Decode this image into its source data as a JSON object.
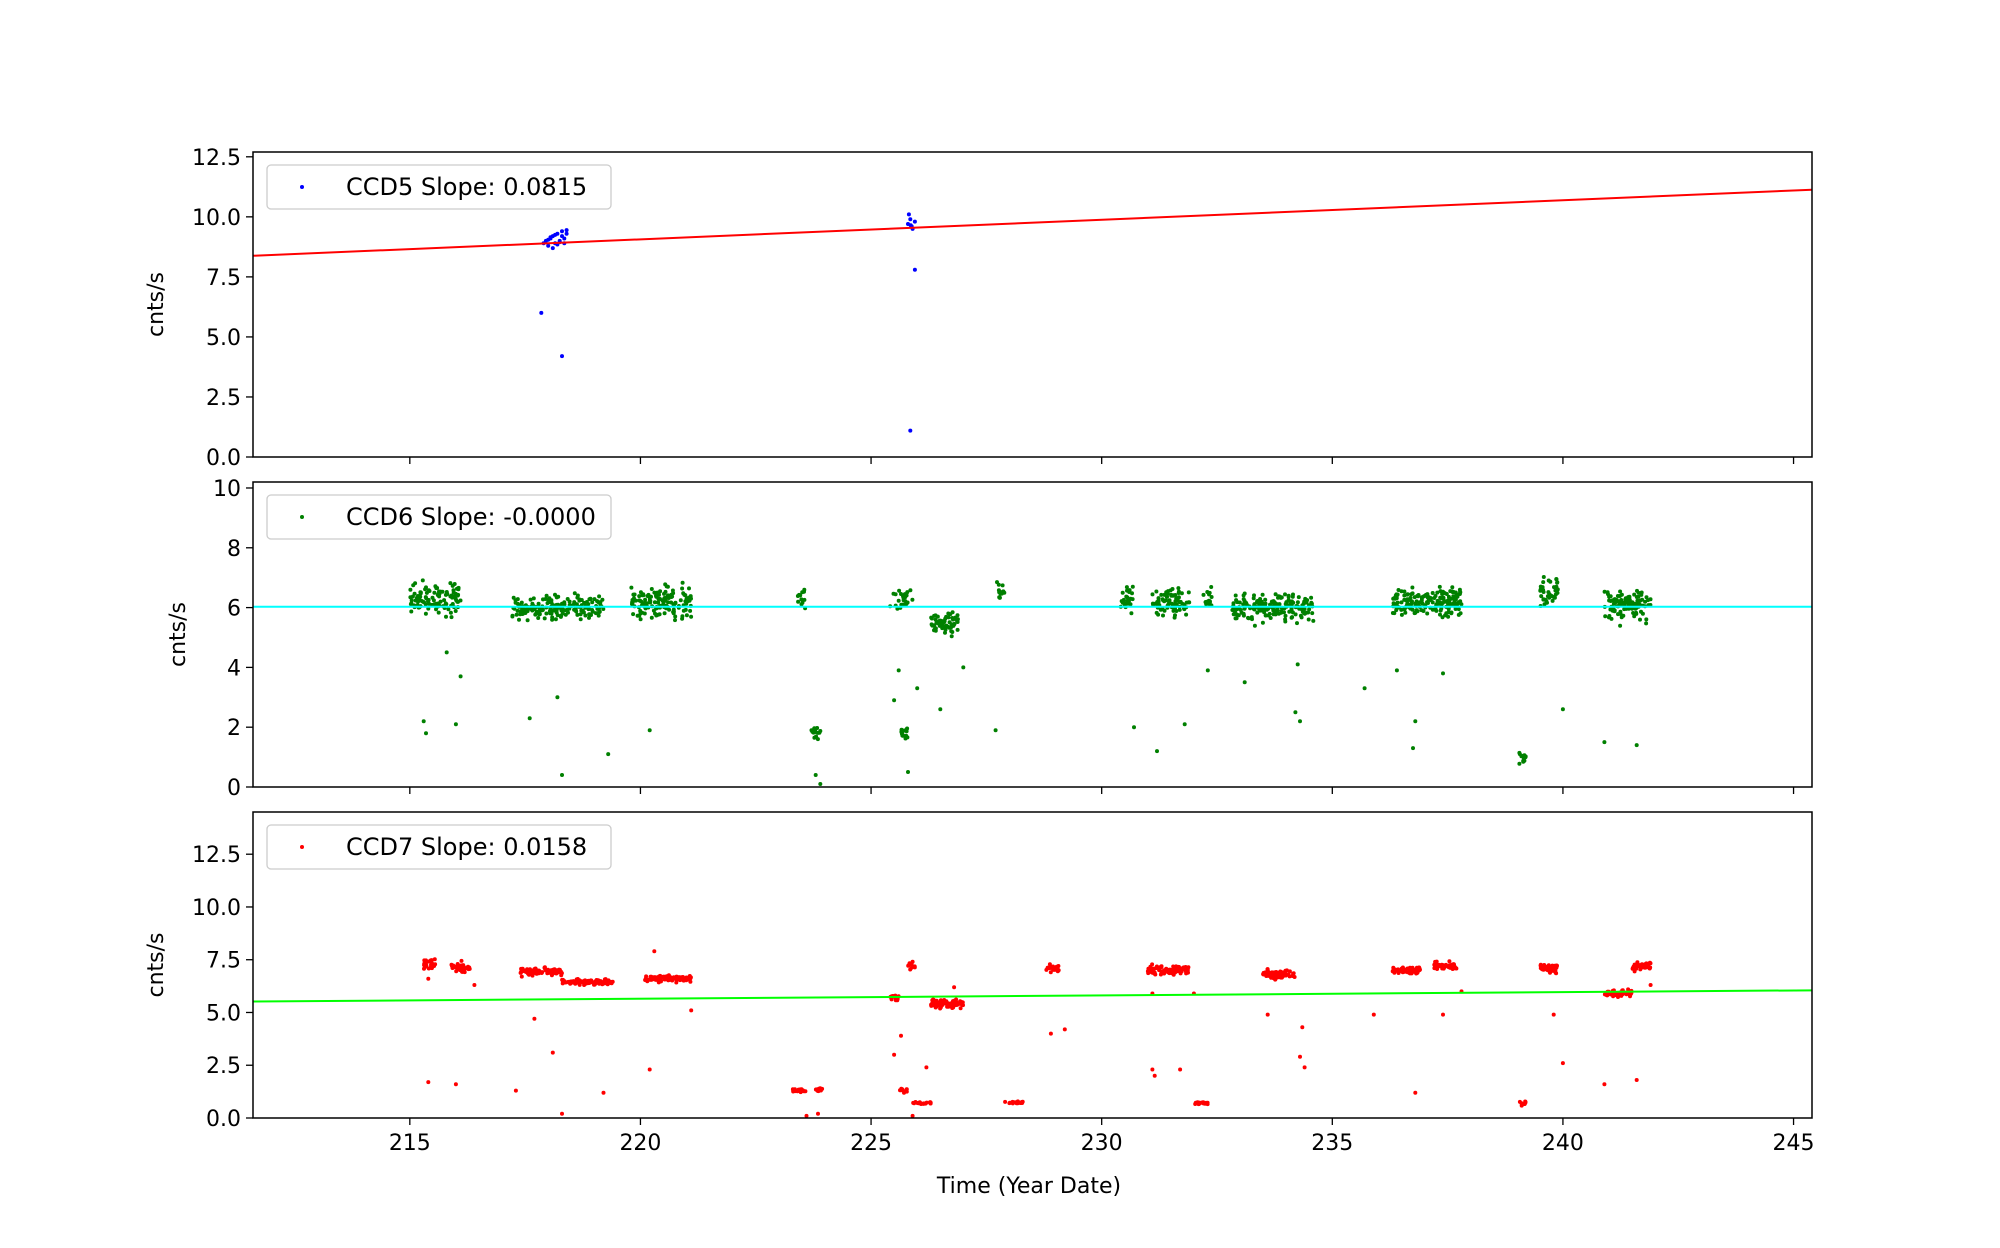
{
  "figure": {
    "xlabel": "Time (Year Date)",
    "x_tick_labels": [
      "215",
      "220",
      "225",
      "230",
      "235",
      "240",
      "245"
    ]
  },
  "chart_data": [
    {
      "type": "scatter",
      "title": "",
      "xlabel": "",
      "ylabel": "cnts/s",
      "xlim": [
        211.6,
        245.4
      ],
      "ylim": [
        0,
        12.7
      ],
      "x_ticks": [
        215,
        220,
        225,
        230,
        235,
        240,
        245
      ],
      "y_ticks": [
        0.0,
        2.5,
        5.0,
        7.5,
        10.0,
        12.5
      ],
      "y_tick_labels": [
        "0.0",
        "2.5",
        "5.0",
        "7.5",
        "10.0",
        "12.5"
      ],
      "legend": {
        "label": "CCD5 Slope: 0.0815",
        "position": "top-left"
      },
      "marker_color": "#0000ff",
      "series": [
        {
          "name": "CCD5 Slope: 0.0815",
          "points": [
            [
              217.9,
              8.9
            ],
            [
              217.95,
              9.0
            ],
            [
              218.0,
              8.8
            ],
            [
              218.05,
              9.1
            ],
            [
              218.1,
              9.2
            ],
            [
              218.15,
              8.9
            ],
            [
              218.2,
              9.3
            ],
            [
              218.25,
              9.0
            ],
            [
              218.3,
              9.4
            ],
            [
              218.35,
              9.1
            ],
            [
              218.0,
              9.05
            ],
            [
              218.1,
              8.7
            ],
            [
              218.2,
              8.85
            ],
            [
              218.3,
              9.2
            ],
            [
              218.4,
              9.3
            ],
            [
              218.05,
              9.15
            ],
            [
              218.15,
              9.25
            ],
            [
              218.25,
              8.95
            ],
            [
              218.35,
              8.9
            ],
            [
              218.4,
              9.45
            ],
            [
              217.85,
              6.0
            ],
            [
              218.3,
              4.2
            ],
            [
              225.8,
              9.7
            ],
            [
              225.85,
              9.9
            ],
            [
              225.9,
              9.5
            ],
            [
              225.82,
              10.1
            ],
            [
              225.88,
              9.6
            ],
            [
              225.95,
              9.8
            ],
            [
              225.86,
              9.65
            ],
            [
              225.95,
              7.8
            ],
            [
              225.85,
              1.1
            ]
          ]
        }
      ],
      "fit_line": {
        "x": [
          211.6,
          245.4
        ],
        "y": [
          8.38,
          11.13
        ],
        "color": "#ff0000"
      }
    },
    {
      "type": "scatter",
      "title": "",
      "xlabel": "",
      "ylabel": "cnts/s",
      "xlim": [
        211.6,
        245.4
      ],
      "ylim": [
        0,
        10.2
      ],
      "x_ticks": [
        215,
        220,
        225,
        230,
        235,
        240,
        245
      ],
      "y_ticks": [
        0,
        2,
        4,
        6,
        8,
        10
      ],
      "y_tick_labels": [
        "0",
        "2",
        "4",
        "6",
        "8",
        "10"
      ],
      "legend": {
        "label": "CCD6 Slope: -0.0000",
        "position": "top-left"
      },
      "marker_color": "#008000",
      "series": [
        {
          "name": "CCD6 Slope: -0.0000",
          "clusters": [
            [
              215.0,
              216.1,
              6.3,
              0.55,
              110
            ],
            [
              217.2,
              219.2,
              6.0,
              0.4,
              180
            ],
            [
              219.8,
              221.1,
              6.2,
              0.5,
              140
            ],
            [
              223.4,
              223.6,
              6.3,
              0.4,
              12
            ],
            [
              223.7,
              223.9,
              1.8,
              0.2,
              15
            ],
            [
              225.4,
              225.9,
              6.3,
              0.5,
              25
            ],
            [
              225.6,
              225.8,
              1.8,
              0.2,
              15
            ],
            [
              226.3,
              226.9,
              5.5,
              0.4,
              60
            ],
            [
              227.7,
              227.9,
              6.6,
              0.5,
              15
            ],
            [
              230.4,
              230.7,
              6.2,
              0.5,
              25
            ],
            [
              231.1,
              231.9,
              6.2,
              0.5,
              80
            ],
            [
              232.2,
              232.4,
              6.3,
              0.4,
              15
            ],
            [
              232.8,
              234.6,
              6.0,
              0.45,
              180
            ],
            [
              236.3,
              237.8,
              6.2,
              0.45,
              180
            ],
            [
              239.5,
              239.9,
              6.5,
              0.5,
              40
            ],
            [
              239.05,
              239.2,
              1.0,
              0.2,
              12
            ],
            [
              240.9,
              241.9,
              6.1,
              0.5,
              110
            ]
          ],
          "outliers": [
            [
              215.3,
              2.2
            ],
            [
              215.35,
              1.8
            ],
            [
              216.0,
              2.1
            ],
            [
              215.8,
              4.5
            ],
            [
              216.1,
              3.7
            ],
            [
              217.6,
              2.3
            ],
            [
              218.2,
              3.0
            ],
            [
              218.3,
              0.4
            ],
            [
              219.3,
              1.1
            ],
            [
              220.2,
              1.9
            ],
            [
              223.8,
              0.4
            ],
            [
              223.9,
              0.1
            ],
            [
              225.5,
              2.9
            ],
            [
              225.6,
              3.9
            ],
            [
              225.8,
              0.5
            ],
            [
              226.0,
              3.3
            ],
            [
              226.5,
              2.6
            ],
            [
              227.0,
              4.0
            ],
            [
              227.7,
              1.9
            ],
            [
              230.7,
              2.0
            ],
            [
              231.2,
              1.2
            ],
            [
              231.8,
              2.1
            ],
            [
              232.3,
              3.9
            ],
            [
              233.1,
              3.5
            ],
            [
              234.2,
              2.5
            ],
            [
              234.3,
              2.2
            ],
            [
              234.25,
              4.1
            ],
            [
              235.7,
              3.3
            ],
            [
              236.4,
              3.9
            ],
            [
              236.8,
              2.2
            ],
            [
              236.75,
              1.3
            ],
            [
              237.4,
              3.8
            ],
            [
              240.0,
              2.6
            ],
            [
              240.9,
              1.5
            ],
            [
              241.6,
              1.4
            ]
          ]
        }
      ],
      "fit_line": {
        "x": [
          211.6,
          245.4
        ],
        "y": [
          6.03,
          6.03
        ],
        "color": "#00ffff"
      }
    },
    {
      "type": "scatter",
      "title": "",
      "xlabel": "Time (Year Date)",
      "ylabel": "cnts/s",
      "xlim": [
        211.6,
        245.4
      ],
      "ylim": [
        0,
        14.5
      ],
      "x_ticks": [
        215,
        220,
        225,
        230,
        235,
        240,
        245
      ],
      "y_ticks": [
        0.0,
        2.5,
        5.0,
        7.5,
        10.0,
        12.5
      ],
      "y_tick_labels": [
        "0.0",
        "2.5",
        "5.0",
        "7.5",
        "10.0",
        "12.5"
      ],
      "legend": {
        "label": "CCD7 Slope: 0.0158",
        "position": "top-left"
      },
      "marker_color": "#ff0000",
      "series": [
        {
          "name": "CCD7 Slope: 0.0158",
          "clusters": [
            [
              215.3,
              215.55,
              7.3,
              0.25,
              25
            ],
            [
              215.9,
              216.3,
              7.1,
              0.25,
              35
            ],
            [
              217.4,
              218.3,
              6.95,
              0.2,
              90
            ],
            [
              218.3,
              219.4,
              6.45,
              0.15,
              100
            ],
            [
              220.1,
              221.1,
              6.6,
              0.15,
              100
            ],
            [
              223.3,
              223.6,
              1.3,
              0.08,
              20
            ],
            [
              223.8,
              223.95,
              1.35,
              0.1,
              12
            ],
            [
              225.4,
              225.6,
              5.7,
              0.15,
              15
            ],
            [
              225.8,
              225.95,
              7.2,
              0.25,
              12
            ],
            [
              225.6,
              225.8,
              1.3,
              0.1,
              10
            ],
            [
              225.9,
              226.3,
              0.7,
              0.06,
              20
            ],
            [
              226.3,
              227.0,
              5.4,
              0.2,
              80
            ],
            [
              227.9,
              228.3,
              0.75,
              0.06,
              18
            ],
            [
              228.8,
              229.1,
              7.1,
              0.15,
              25
            ],
            [
              231.0,
              231.9,
              7.0,
              0.2,
              90
            ],
            [
              232.0,
              232.3,
              0.7,
              0.06,
              20
            ],
            [
              233.5,
              234.2,
              6.8,
              0.2,
              80
            ],
            [
              236.3,
              236.9,
              7.0,
              0.15,
              60
            ],
            [
              237.2,
              237.7,
              7.2,
              0.2,
              50
            ],
            [
              239.5,
              239.9,
              7.1,
              0.2,
              40
            ],
            [
              239.05,
              239.2,
              0.7,
              0.1,
              10
            ],
            [
              240.9,
              241.5,
              5.9,
              0.15,
              60
            ],
            [
              241.5,
              241.9,
              7.2,
              0.2,
              40
            ]
          ],
          "outliers": [
            [
              215.4,
              1.7
            ],
            [
              215.4,
              6.6
            ],
            [
              216.0,
              1.6
            ],
            [
              216.4,
              6.3
            ],
            [
              217.3,
              1.3
            ],
            [
              217.7,
              4.7
            ],
            [
              218.1,
              3.1
            ],
            [
              218.3,
              0.2
            ],
            [
              219.2,
              1.2
            ],
            [
              220.2,
              2.3
            ],
            [
              220.3,
              7.9
            ],
            [
              221.1,
              5.1
            ],
            [
              223.6,
              0.1
            ],
            [
              223.85,
              0.2
            ],
            [
              225.5,
              3.0
            ],
            [
              225.65,
              3.9
            ],
            [
              226.2,
              2.4
            ],
            [
              226.8,
              6.2
            ],
            [
              225.9,
              0.1
            ],
            [
              228.9,
              4.0
            ],
            [
              229.2,
              4.2
            ],
            [
              231.1,
              2.3
            ],
            [
              231.15,
              2.0
            ],
            [
              231.7,
              2.3
            ],
            [
              231.1,
              5.9
            ],
            [
              232.0,
              5.9
            ],
            [
              233.6,
              4.9
            ],
            [
              234.3,
              2.9
            ],
            [
              234.4,
              2.4
            ],
            [
              234.35,
              4.3
            ],
            [
              235.9,
              4.9
            ],
            [
              236.8,
              1.2
            ],
            [
              237.4,
              4.9
            ],
            [
              237.8,
              6.0
            ],
            [
              239.8,
              4.9
            ],
            [
              240.0,
              2.6
            ],
            [
              240.9,
              1.6
            ],
            [
              241.6,
              1.8
            ],
            [
              241.9,
              6.3
            ]
          ]
        }
      ],
      "fit_line": {
        "x": [
          211.6,
          245.4
        ],
        "y": [
          5.52,
          6.05
        ],
        "color": "#00ff00"
      }
    }
  ]
}
